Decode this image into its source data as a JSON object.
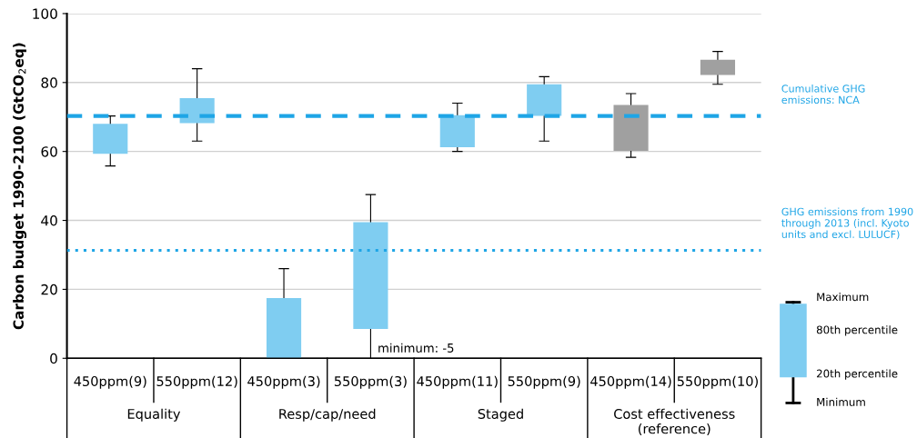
{
  "chart_data": {
    "type": "bar",
    "ylabel": "Carbon budget 1990-2100 (GtCO$_{2}$eq)",
    "categories": [
      "450ppm(9)",
      "550ppm(12)",
      "450ppm(3)",
      "550ppm(3)",
      "450ppm(11)",
      "550ppm(9)",
      "450ppm(14)",
      "550ppm(10)"
    ],
    "base": [
      59.3,
      68.2,
      0,
      8.5,
      61.2,
      70.3,
      60.2,
      82.2
    ],
    "values": [
      8.7,
      7.3,
      17.5,
      31,
      9.3,
      9.2,
      13.3,
      4.4
    ],
    "errors": [
      [
        55.8,
        70.3
      ],
      [
        63,
        84
      ],
      [
        0,
        26
      ],
      [
        0,
        47.5
      ],
      [
        60,
        74
      ],
      [
        63,
        81.7
      ],
      [
        58.3,
        76.8
      ],
      [
        79.5,
        89
      ]
    ],
    "colors": [
      "#7fcdf1",
      "#7fcdf1",
      "#7fcdf1",
      "#7fcdf1",
      "#7fcdf1",
      "#7fcdf1",
      "#a0a0a0",
      "#a0a0a0"
    ],
    "ylim": [
      0,
      100
    ],
    "yticks": [
      0,
      20,
      40,
      60,
      80,
      100
    ],
    "grid": "y",
    "ref_lines": [
      {
        "axis": "y",
        "value": 70.3,
        "label": "Cumulative GHG emissions: NCA",
        "color": "#1ea5e6",
        "line_style": "dashed"
      },
      {
        "axis": "y",
        "value": 31.3,
        "label": "GHG emissions from 1990 through 2013 (incl. Kyoto units and excl. LULUCF)",
        "color": "#1ea5e6",
        "line_style": "dotted"
      }
    ],
    "annotations": [
      "Equality",
      "Resp/cap/need",
      "Staged",
      "Cost effectiveness\n(reference)",
      "minimum: -5",
      "Maximum",
      "80th percentile",
      "20th percentile",
      "Minimum"
    ]
  }
}
